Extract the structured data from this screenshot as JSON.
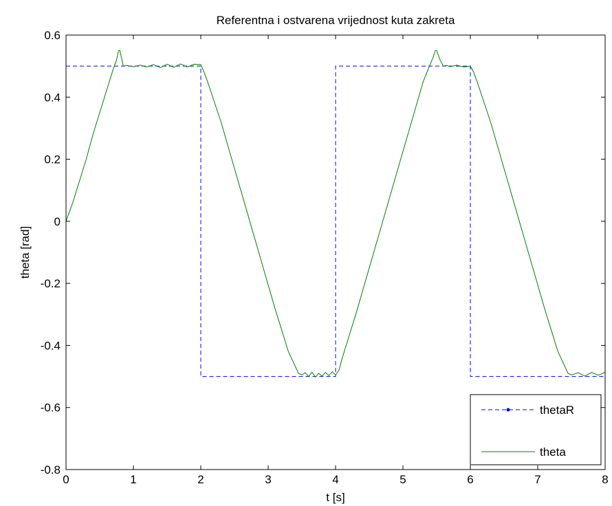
{
  "chart_data": {
    "type": "line",
    "title": "Referentna i ostvarena vrijednost kuta zakreta",
    "xlabel": "t [s]",
    "ylabel": "theta [rad]",
    "xlim": [
      0,
      8
    ],
    "ylim": [
      -0.8,
      0.6
    ],
    "xticks": [
      0,
      1,
      2,
      3,
      4,
      5,
      6,
      7,
      8
    ],
    "yticks": [
      0.6,
      0.4,
      0.2,
      0,
      -0.2,
      -0.4,
      -0.6,
      -0.8
    ],
    "grid": false,
    "legend_position": "bottom-right",
    "series": [
      {
        "name": "thetaR",
        "color": "#0000ff",
        "style": "dashed",
        "x": [
          0,
          2,
          2,
          4,
          4,
          6,
          6,
          8
        ],
        "y": [
          0.5,
          0.5,
          -0.5,
          -0.5,
          0.5,
          0.5,
          -0.5,
          -0.5
        ]
      },
      {
        "name": "theta",
        "color": "#008000",
        "style": "solid",
        "x": [
          0,
          0.05,
          0.1,
          0.2,
          0.3,
          0.4,
          0.5,
          0.6,
          0.7,
          0.75,
          0.78,
          0.8,
          0.83,
          0.85,
          0.9,
          1.0,
          1.1,
          1.2,
          1.3,
          1.4,
          1.5,
          1.6,
          1.7,
          1.8,
          1.9,
          2.0,
          2.05,
          2.1,
          2.3,
          2.5,
          2.7,
          2.9,
          3.1,
          3.3,
          3.45,
          3.5,
          3.55,
          3.6,
          3.65,
          3.7,
          3.75,
          3.8,
          3.85,
          3.9,
          3.95,
          4.0,
          4.05,
          4.1,
          4.3,
          4.5,
          4.7,
          4.9,
          5.1,
          5.3,
          5.45,
          5.48,
          5.5,
          5.55,
          5.6,
          5.65,
          5.7,
          5.8,
          5.9,
          6.0,
          6.05,
          6.1,
          6.3,
          6.5,
          6.7,
          6.9,
          7.1,
          7.3,
          7.45,
          7.5,
          7.6,
          7.7,
          7.8,
          7.9,
          8.0
        ],
        "y": [
          0.0,
          0.03,
          0.06,
          0.13,
          0.2,
          0.28,
          0.35,
          0.42,
          0.49,
          0.52,
          0.55,
          0.55,
          0.52,
          0.5,
          0.502,
          0.498,
          0.503,
          0.497,
          0.505,
          0.495,
          0.506,
          0.496,
          0.507,
          0.497,
          0.506,
          0.505,
          0.48,
          0.45,
          0.32,
          0.17,
          0.02,
          -0.13,
          -0.28,
          -0.42,
          -0.49,
          -0.495,
          -0.488,
          -0.5,
          -0.486,
          -0.502,
          -0.49,
          -0.499,
          -0.487,
          -0.497,
          -0.485,
          -0.495,
          -0.48,
          -0.44,
          -0.3,
          -0.15,
          0.0,
          0.15,
          0.3,
          0.45,
          0.53,
          0.55,
          0.55,
          0.52,
          0.5,
          0.502,
          0.498,
          0.503,
          0.497,
          0.5,
          0.48,
          0.45,
          0.32,
          0.17,
          0.02,
          -0.13,
          -0.28,
          -0.42,
          -0.49,
          -0.495,
          -0.488,
          -0.499,
          -0.487,
          -0.496,
          -0.486
        ]
      }
    ]
  }
}
